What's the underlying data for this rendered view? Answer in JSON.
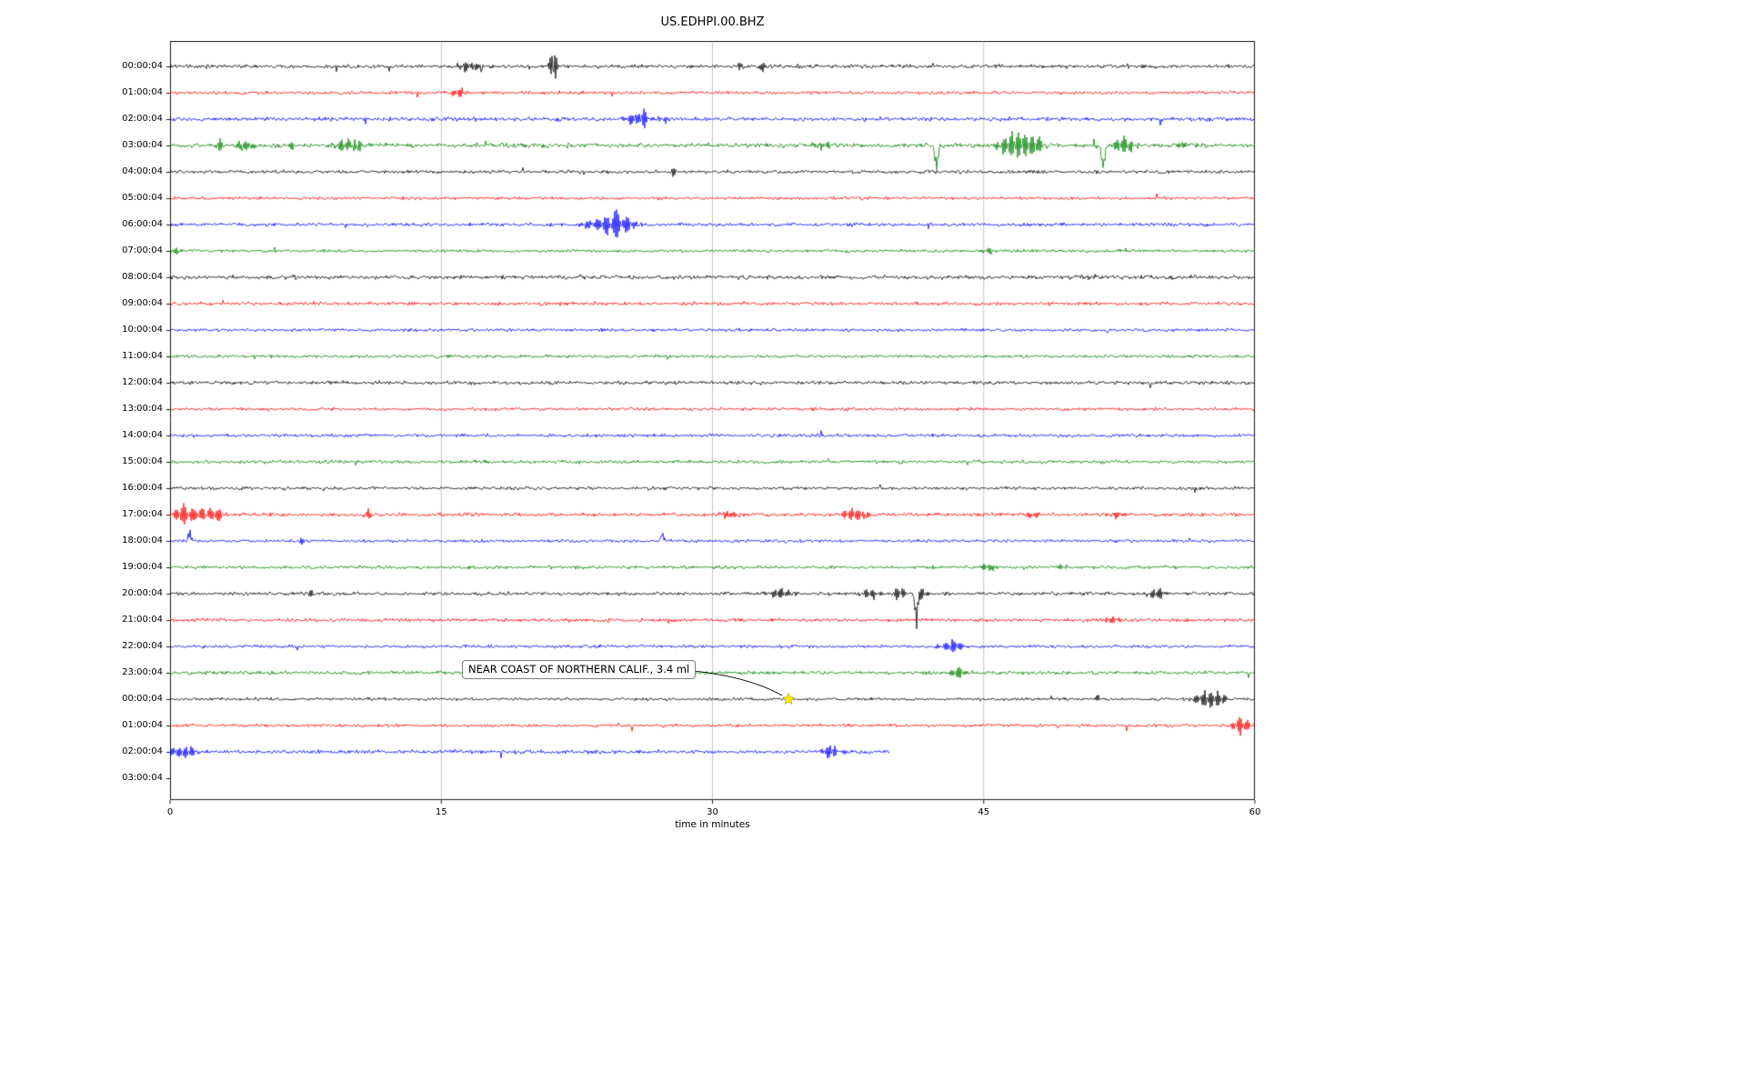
{
  "title": "US.EDHPI.00.BHZ",
  "chart_data": {
    "type": "line",
    "variant": "helicorder-dayplot",
    "title": "US.EDHPI.00.BHZ",
    "xlabel": "time in minutes",
    "xlim": [
      0,
      60
    ],
    "x_ticks": [
      0,
      15,
      30,
      45,
      60
    ],
    "grid": "vertical-at-15-30-45",
    "trace_color_cycle": [
      "#000000",
      "#ff0000",
      "#0000ff",
      "#008000"
    ],
    "annotation": {
      "text": "NEAR COAST OF NORTHERN CALIF., 3.4 ml",
      "marker": "yellow-star",
      "marker_row": 24,
      "marker_minute": 34.2,
      "marker_color": "#ffee00"
    },
    "rows": [
      {
        "label": "00:00:04",
        "color": "#000000",
        "noise": 2.4,
        "events": [
          {
            "t": 16.4,
            "a": 6,
            "w": 0.5
          },
          {
            "t": 16.9,
            "a": 7,
            "w": 0.12
          },
          {
            "t": 21.2,
            "a": 26,
            "w": 0.14
          },
          {
            "t": 31.6,
            "a": 4,
            "w": 0.25
          },
          {
            "t": 32.8,
            "a": 6,
            "w": 0.1
          }
        ]
      },
      {
        "label": "01:00:04",
        "color": "#ff0000",
        "noise": 2.0,
        "events": [
          {
            "t": 16.1,
            "a": 6,
            "w": 0.4
          },
          {
            "t": 16.5,
            "a": 5,
            "w": 0.2
          }
        ]
      },
      {
        "label": "02:00:04",
        "color": "#0000ff",
        "noise": 2.6,
        "events": [
          {
            "t": 25.9,
            "a": 8,
            "w": 0.5
          },
          {
            "t": 26.15,
            "a": 10,
            "w": 0.15
          },
          {
            "t": 27.4,
            "a": 5,
            "w": 0.12
          }
        ]
      },
      {
        "label": "03:00:04",
        "color": "#008000",
        "noise": 2.8,
        "events": [
          {
            "t": 2.7,
            "a": 10,
            "w": 0.12
          },
          {
            "t": 4.0,
            "a": 6,
            "w": 0.5
          },
          {
            "t": 6.8,
            "a": 6,
            "w": 0.15
          },
          {
            "t": 9.8,
            "a": 8,
            "w": 0.5
          },
          {
            "t": 10.4,
            "a": 8,
            "w": 0.15
          },
          {
            "t": 35.9,
            "a": 5,
            "w": 0.4
          },
          {
            "t": 42.4,
            "a": 30,
            "w": 0.13,
            "d": 1
          },
          {
            "t": 46.4,
            "a": 11,
            "w": 0.5
          },
          {
            "t": 47.1,
            "a": 12,
            "w": 0.5
          },
          {
            "t": 47.8,
            "a": 9,
            "w": 0.4
          },
          {
            "t": 51.6,
            "a": 32,
            "w": 0.13,
            "d": 1
          },
          {
            "t": 52.7,
            "a": 11,
            "w": 0.45
          },
          {
            "t": 55.9,
            "a": 4,
            "w": 0.3
          }
        ]
      },
      {
        "label": "04:00:04",
        "color": "#000000",
        "noise": 2.2,
        "events": [
          {
            "t": 27.8,
            "a": 7,
            "w": 0.1
          }
        ]
      },
      {
        "label": "05:00:04",
        "color": "#ff0000",
        "noise": 1.9,
        "events": []
      },
      {
        "label": "06:00:04",
        "color": "#0000ff",
        "noise": 2.2,
        "events": [
          {
            "t": 23.2,
            "a": 5,
            "w": 0.4
          },
          {
            "t": 24.2,
            "a": 12,
            "w": 0.45
          },
          {
            "t": 24.75,
            "a": 18,
            "w": 0.2
          },
          {
            "t": 25.3,
            "a": 9,
            "w": 0.4
          }
        ]
      },
      {
        "label": "07:00:04",
        "color": "#008000",
        "noise": 1.9,
        "events": [
          {
            "t": 0.3,
            "a": 4,
            "w": 0.3
          },
          {
            "t": 45.2,
            "a": 4,
            "w": 0.3
          }
        ]
      },
      {
        "label": "08:00:04",
        "color": "#000000",
        "noise": 2.6,
        "events": []
      },
      {
        "label": "09:00:04",
        "color": "#ff0000",
        "noise": 2.2,
        "events": []
      },
      {
        "label": "10:00:04",
        "color": "#0000ff",
        "noise": 2.0,
        "events": []
      },
      {
        "label": "11:00:04",
        "color": "#008000",
        "noise": 1.9,
        "events": []
      },
      {
        "label": "12:00:04",
        "color": "#000000",
        "noise": 2.3,
        "events": []
      },
      {
        "label": "13:00:04",
        "color": "#ff0000",
        "noise": 2.0,
        "events": []
      },
      {
        "label": "14:00:04",
        "color": "#0000ff",
        "noise": 2.1,
        "events": []
      },
      {
        "label": "15:00:04",
        "color": "#008000",
        "noise": 2.2,
        "events": []
      },
      {
        "label": "16:00:04",
        "color": "#000000",
        "noise": 2.1,
        "events": []
      },
      {
        "label": "17:00:04",
        "color": "#ff0000",
        "noise": 2.3,
        "events": [
          {
            "t": 0.7,
            "a": 13,
            "w": 0.4
          },
          {
            "t": 1.7,
            "a": 8,
            "w": 0.6
          },
          {
            "t": 2.6,
            "a": 6,
            "w": 0.3
          },
          {
            "t": 10.9,
            "a": 9,
            "w": 0.13
          },
          {
            "t": 30.9,
            "a": 4,
            "w": 0.4
          },
          {
            "t": 37.9,
            "a": 8,
            "w": 0.5
          },
          {
            "t": 38.4,
            "a": 9,
            "w": 0.2
          },
          {
            "t": 47.7,
            "a": 4,
            "w": 0.3
          },
          {
            "t": 52.3,
            "a": 4,
            "w": 0.3
          }
        ]
      },
      {
        "label": "18:00:04",
        "color": "#0000ff",
        "noise": 1.9,
        "events": [
          {
            "t": 1.05,
            "a": 13,
            "w": 0.1,
            "d": -1
          },
          {
            "t": 7.3,
            "a": 6,
            "w": 0.1
          },
          {
            "t": 27.2,
            "a": 10,
            "w": 0.1,
            "d": -1
          }
        ]
      },
      {
        "label": "19:00:04",
        "color": "#008000",
        "noise": 2.1,
        "events": [
          {
            "t": 45.3,
            "a": 4,
            "w": 0.4
          },
          {
            "t": 49.3,
            "a": 4,
            "w": 0.2
          }
        ]
      },
      {
        "label": "20:00:04",
        "color": "#000000",
        "noise": 2.2,
        "events": [
          {
            "t": 7.8,
            "a": 6,
            "w": 0.1
          },
          {
            "t": 33.8,
            "a": 6,
            "w": 0.5
          },
          {
            "t": 38.7,
            "a": 6,
            "w": 0.4
          },
          {
            "t": 40.3,
            "a": 7,
            "w": 0.3
          },
          {
            "t": 41.3,
            "a": 40,
            "w": 0.1,
            "d": 1
          },
          {
            "t": 41.6,
            "a": 8,
            "w": 0.2
          },
          {
            "t": 54.6,
            "a": 7,
            "w": 0.4
          }
        ]
      },
      {
        "label": "21:00:04",
        "color": "#ff0000",
        "noise": 2.3,
        "events": [
          {
            "t": 52.1,
            "a": 4,
            "w": 0.4
          }
        ]
      },
      {
        "label": "22:00:04",
        "color": "#0000ff",
        "noise": 2.0,
        "events": [
          {
            "t": 43.3,
            "a": 8,
            "w": 0.4
          }
        ]
      },
      {
        "label": "23:00:04",
        "color": "#008000",
        "noise": 2.2,
        "events": [
          {
            "t": 43.6,
            "a": 6,
            "w": 0.4
          }
        ]
      },
      {
        "label": "00:00:04",
        "color": "#000000",
        "noise": 1.9,
        "events": [
          {
            "t": 51.3,
            "a": 5,
            "w": 0.15
          },
          {
            "t": 57.3,
            "a": 11,
            "w": 0.45
          },
          {
            "t": 58.0,
            "a": 6,
            "w": 0.3
          }
        ]
      },
      {
        "label": "01:00:04",
        "color": "#ff0000",
        "noise": 2.0,
        "events": [
          {
            "t": 59.2,
            "a": 10,
            "w": 0.35
          }
        ]
      },
      {
        "label": "02:00:04",
        "color": "#0000ff",
        "noise": 2.4,
        "end": 39.8,
        "events": [
          {
            "t": 0.5,
            "a": 7,
            "w": 0.4
          },
          {
            "t": 1.1,
            "a": 6,
            "w": 0.3
          },
          {
            "t": 36.7,
            "a": 12,
            "w": 0.4
          },
          {
            "t": 37.1,
            "a": 8,
            "w": 0.3
          }
        ]
      },
      {
        "label": "03:00:04",
        "color": "#008000",
        "noise": 0,
        "no_trace": true,
        "events": []
      }
    ]
  }
}
